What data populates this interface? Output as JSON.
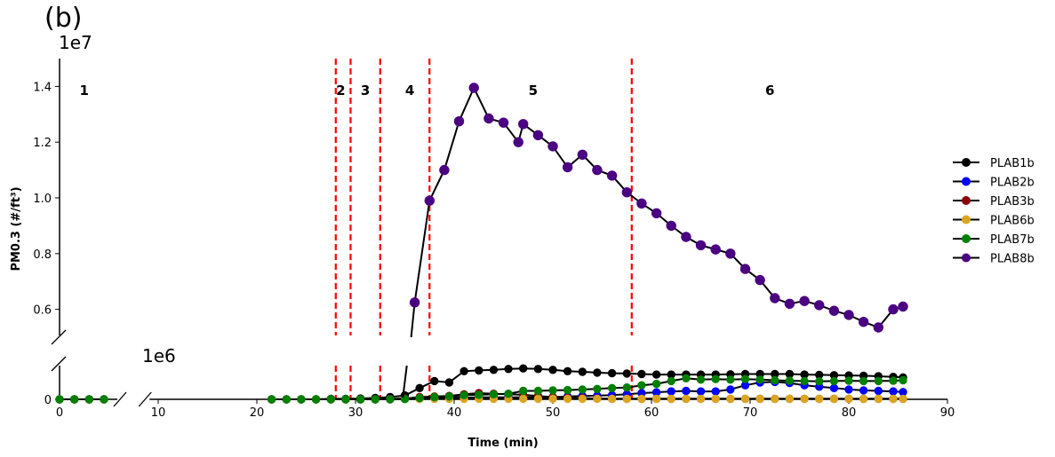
{
  "panel_label": "(b)",
  "chart_data": {
    "type": "line",
    "title": "",
    "xlabel": "Time (min)",
    "ylabel": "PM0.3 (#/ft³)",
    "xlim": [
      0,
      90
    ],
    "x_ticks": [
      "0",
      "10",
      "20",
      "30",
      "40",
      "50",
      "60",
      "70",
      "80",
      "90"
    ],
    "upper_axis": {
      "ylim": [
        0.5,
        1.5
      ],
      "multiplier": "1e7",
      "y_ticks": [
        "0.6",
        "0.8",
        "1.0",
        "1.2",
        "1.4"
      ]
    },
    "lower_axis": {
      "ylim": [
        0,
        1.2
      ],
      "multiplier": "1e6",
      "y_ticks": [
        "0"
      ]
    },
    "phase_boundaries": [
      28,
      29.5,
      32.5,
      37.5,
      58
    ],
    "phases": [
      {
        "label": "1",
        "x": 2.5
      },
      {
        "label": "2",
        "x": 28.5
      },
      {
        "label": "3",
        "x": 31
      },
      {
        "label": "4",
        "x": 35.5
      },
      {
        "label": "5",
        "x": 48
      },
      {
        "label": "6",
        "x": 72
      }
    ],
    "series": [
      {
        "name": "PLAB1b",
        "color": "#000000",
        "units": "1e6",
        "x": [
          0,
          1.5,
          3,
          4.5,
          21.5,
          23,
          24.5,
          26,
          27.5,
          29,
          30.5,
          32,
          33.5,
          35,
          36.5,
          38,
          39.5,
          41,
          42.5,
          44,
          45.5,
          47,
          48.5,
          50,
          51.5,
          53,
          54.5,
          56,
          57.5,
          59,
          60.5,
          62,
          63.5,
          65,
          66.5,
          68,
          69.5,
          71,
          72.5,
          74,
          75.5,
          77,
          78.5,
          80,
          81.5,
          83,
          84.5,
          85.5
        ],
        "y": [
          0,
          0,
          0,
          0,
          0,
          0,
          0,
          0,
          0.02,
          0.02,
          0.03,
          0.05,
          0.08,
          0.14,
          0.4,
          0.65,
          0.6,
          1.0,
          1.03,
          1.05,
          1.08,
          1.1,
          1.08,
          1.05,
          1.0,
          0.98,
          0.95,
          0.93,
          0.92,
          0.9,
          0.88,
          0.88,
          0.88,
          0.88,
          0.88,
          0.89,
          0.9,
          0.9,
          0.9,
          0.9,
          0.88,
          0.87,
          0.86,
          0.85,
          0.84,
          0.82,
          0.8,
          0.78
        ]
      },
      {
        "name": "PLAB2b",
        "color": "#0000ff",
        "units": "1e6",
        "x": [
          0,
          1.5,
          3,
          4.5,
          21.5,
          23,
          24.5,
          26,
          27.5,
          29,
          30.5,
          32,
          33.5,
          35,
          36.5,
          38,
          39.5,
          41,
          42.5,
          44,
          45.5,
          47,
          48.5,
          50,
          51.5,
          53,
          54.5,
          56,
          57.5,
          59,
          60.5,
          62,
          63.5,
          65,
          66.5,
          68,
          69.5,
          71,
          72.5,
          74,
          75.5,
          77,
          78.5,
          80,
          81.5,
          83,
          84.5,
          85.5
        ],
        "y": [
          0,
          0,
          0,
          0,
          0,
          0,
          0,
          0,
          0,
          0,
          0,
          0,
          0.02,
          0.03,
          0.05,
          0.05,
          0.06,
          0.06,
          0.07,
          0.07,
          0.07,
          0.07,
          0.08,
          0.08,
          0.1,
          0.12,
          0.13,
          0.15,
          0.18,
          0.22,
          0.25,
          0.28,
          0.3,
          0.28,
          0.28,
          0.35,
          0.5,
          0.6,
          0.62,
          0.58,
          0.5,
          0.45,
          0.4,
          0.35,
          0.32,
          0.3,
          0.28,
          0.26
        ]
      },
      {
        "name": "PLAB3b",
        "color": "#8b0000",
        "units": "1e6",
        "x": [
          0,
          1.5,
          3,
          4.5,
          21.5,
          23,
          24.5,
          26,
          27.5,
          29,
          30.5,
          32,
          33.5,
          35,
          36.5,
          38,
          39.5,
          41,
          42.5,
          44,
          45.5,
          47,
          48.5,
          50,
          51.5,
          53,
          54.5,
          56,
          57.5,
          59,
          60.5,
          62,
          63.5,
          65,
          66.5,
          68,
          69.5,
          71,
          72.5,
          74,
          75.5,
          77,
          78.5,
          80,
          81.5,
          83,
          84.5,
          85.5
        ],
        "y": [
          0,
          0,
          0,
          0,
          0,
          0,
          0,
          0,
          0,
          0,
          0,
          0,
          0.01,
          0.03,
          0.08,
          0.1,
          0.12,
          0.18,
          0.22,
          0.2,
          0.18,
          0.16,
          0.12,
          0.08,
          0.05,
          0.04,
          0.03,
          0.02,
          0.02,
          0.02,
          0.02,
          0.02,
          0.02,
          0.02,
          0.02,
          0.02,
          0.02,
          0.02,
          0.02,
          0.02,
          0.02,
          0.02,
          0.02,
          0.02,
          0.02,
          0.02,
          0.02,
          0.02
        ]
      },
      {
        "name": "PLAB6b",
        "color": "#daa520",
        "units": "1e6",
        "x": [
          0,
          1.5,
          3,
          4.5,
          21.5,
          23,
          24.5,
          26,
          27.5,
          29,
          30.5,
          32,
          33.5,
          35,
          36.5,
          38,
          39.5,
          41,
          42.5,
          44,
          45.5,
          47,
          48.5,
          50,
          51.5,
          53,
          54.5,
          56,
          57.5,
          59,
          60.5,
          62,
          63.5,
          65,
          66.5,
          68,
          69.5,
          71,
          72.5,
          74,
          75.5,
          77,
          78.5,
          80,
          81.5,
          83,
          84.5,
          85.5
        ],
        "y": [
          0,
          0,
          0,
          0,
          0,
          0,
          0,
          0,
          0,
          0,
          0,
          0,
          0,
          0.01,
          0.01,
          0.02,
          0.02,
          0.02,
          0.02,
          0.02,
          0.02,
          0.02,
          0.02,
          0.02,
          0.02,
          0.02,
          0.02,
          0.02,
          0.02,
          0.02,
          0.02,
          0.02,
          0.02,
          0.02,
          0.02,
          0.02,
          0.02,
          0.02,
          0.02,
          0.02,
          0.02,
          0.02,
          0.02,
          0.02,
          0.02,
          0.02,
          0.02,
          0.02
        ]
      },
      {
        "name": "PLAB7b",
        "color": "#008000",
        "units": "1e6",
        "x": [
          0,
          1.5,
          3,
          4.5,
          21.5,
          23,
          24.5,
          26,
          27.5,
          29,
          30.5,
          32,
          33.5,
          35,
          36.5,
          38,
          39.5,
          41,
          42.5,
          44,
          45.5,
          47,
          48.5,
          50,
          51.5,
          53,
          54.5,
          56,
          57.5,
          59,
          60.5,
          62,
          63.5,
          65,
          66.5,
          68,
          69.5,
          71,
          72.5,
          74,
          75.5,
          77,
          78.5,
          80,
          81.5,
          83,
          84.5,
          85.5
        ],
        "y": [
          0,
          0,
          0,
          0,
          0,
          0,
          0,
          0,
          0,
          0,
          0,
          0,
          0,
          0.01,
          0.05,
          0.08,
          0.1,
          0.15,
          0.16,
          0.18,
          0.2,
          0.3,
          0.3,
          0.32,
          0.33,
          0.35,
          0.37,
          0.4,
          0.42,
          0.5,
          0.55,
          0.65,
          0.75,
          0.7,
          0.72,
          0.7,
          0.72,
          0.7,
          0.68,
          0.66,
          0.65,
          0.64,
          0.65,
          0.66,
          0.65,
          0.65,
          0.66,
          0.68
        ]
      },
      {
        "name": "PLAB8b",
        "color": "#4b0082",
        "units": "1e7",
        "x": [
          36,
          37.5,
          39,
          40.5,
          42,
          43.5,
          45,
          46.5,
          47,
          48.5,
          50,
          51.5,
          53,
          54.5,
          56,
          57.5,
          59,
          60.5,
          62,
          63.5,
          65,
          66.5,
          68,
          69.5,
          71,
          72.5,
          74,
          75.5,
          77,
          78.5,
          80,
          81.5,
          83,
          84.5,
          85.5
        ],
        "y": [
          0.625,
          0.99,
          1.1,
          1.275,
          1.395,
          1.285,
          1.27,
          1.2,
          1.265,
          1.225,
          1.185,
          1.11,
          1.155,
          1.1,
          1.08,
          1.02,
          0.98,
          0.945,
          0.9,
          0.86,
          0.83,
          0.815,
          0.8,
          0.745,
          0.705,
          0.64,
          0.62,
          0.63,
          0.615,
          0.595,
          0.58,
          0.555,
          0.535,
          0.6,
          0.61
        ]
      }
    ],
    "legend_position": "right"
  }
}
